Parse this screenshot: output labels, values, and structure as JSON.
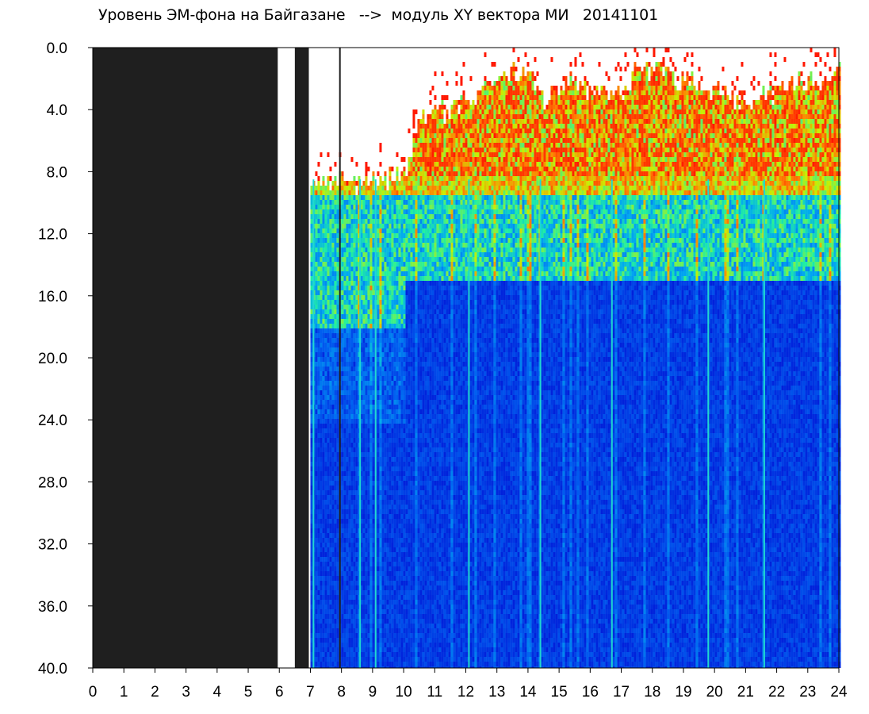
{
  "chart_data": {
    "type": "heatmap",
    "title": "Уровень ЭМ-фона на Байгазане   -->  модуль XY вектора МИ   20141101",
    "xlabel": "",
    "ylabel": "",
    "xlim": [
      0,
      24
    ],
    "ylim": [
      0,
      40
    ],
    "y_inverted": true,
    "x_ticks": [
      "0",
      "1",
      "2",
      "3",
      "4",
      "5",
      "6",
      "7",
      "8",
      "9",
      "10",
      "11",
      "12",
      "13",
      "14",
      "15",
      "16",
      "17",
      "18",
      "19",
      "20",
      "21",
      "22",
      "23",
      "24"
    ],
    "y_ticks": [
      "0.0",
      "4.0",
      "8.0",
      "12.0",
      "16.0",
      "20.0",
      "24.0",
      "28.0",
      "32.0",
      "36.0",
      "40.0"
    ],
    "colors": {
      "missing": "#1f1f1f",
      "low": "#0018d8",
      "mid_low": "#00a8f0",
      "mid": "#20f0a0",
      "mid_high": "#c8f000",
      "high": "#ff1800"
    },
    "missing_data_intervals": [
      [
        0,
        5.95
      ],
      [
        6.5,
        6.95
      ]
    ],
    "missing_data_line": 7.95,
    "data_start": 7.0,
    "signal_top_y_by_hour": [
      {
        "x": 7.0,
        "y": 8.5
      },
      {
        "x": 8.0,
        "y": 8.5
      },
      {
        "x": 9.0,
        "y": 8.5
      },
      {
        "x": 10.0,
        "y": 8.0
      },
      {
        "x": 10.5,
        "y": 4.5
      },
      {
        "x": 12.0,
        "y": 3.5
      },
      {
        "x": 13.0,
        "y": 1.8
      },
      {
        "x": 14.0,
        "y": 1.5
      },
      {
        "x": 14.5,
        "y": 3.5
      },
      {
        "x": 15.0,
        "y": 2.0
      },
      {
        "x": 16.0,
        "y": 2.5
      },
      {
        "x": 17.0,
        "y": 3.0
      },
      {
        "x": 17.5,
        "y": 1.0
      },
      {
        "x": 18.0,
        "y": 1.2
      },
      {
        "x": 19.0,
        "y": 2.0
      },
      {
        "x": 20.0,
        "y": 2.5
      },
      {
        "x": 21.0,
        "y": 3.5
      },
      {
        "x": 22.0,
        "y": 2.5
      },
      {
        "x": 23.0,
        "y": 2.0
      },
      {
        "x": 24.0,
        "y": 1.5
      }
    ],
    "strong_vertical_lines_x": [
      7.1,
      8.6,
      9.1,
      12.1,
      14.4,
      16.7,
      19.8,
      21.6
    ]
  }
}
